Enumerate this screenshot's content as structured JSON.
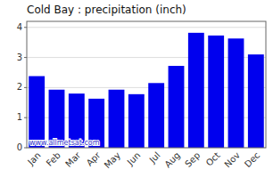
{
  "chart_data": {
    "type": "bar",
    "title": "Cold Bay : precipitation (inch)",
    "categories": [
      "Jan",
      "Feb",
      "Mar",
      "Apr",
      "May",
      "Jun",
      "Jul",
      "Aug",
      "Sep",
      "Oct",
      "Nov",
      "Dec"
    ],
    "values": [
      2.38,
      1.93,
      1.8,
      1.63,
      1.93,
      1.78,
      2.15,
      2.72,
      3.82,
      3.73,
      3.63,
      3.1
    ],
    "color": "#0000EE",
    "ylim": [
      0,
      4.2
    ],
    "yticks": [
      0,
      1,
      2,
      3,
      4
    ],
    "grid": true,
    "annotations": [
      "www.allmetsat.com"
    ]
  }
}
